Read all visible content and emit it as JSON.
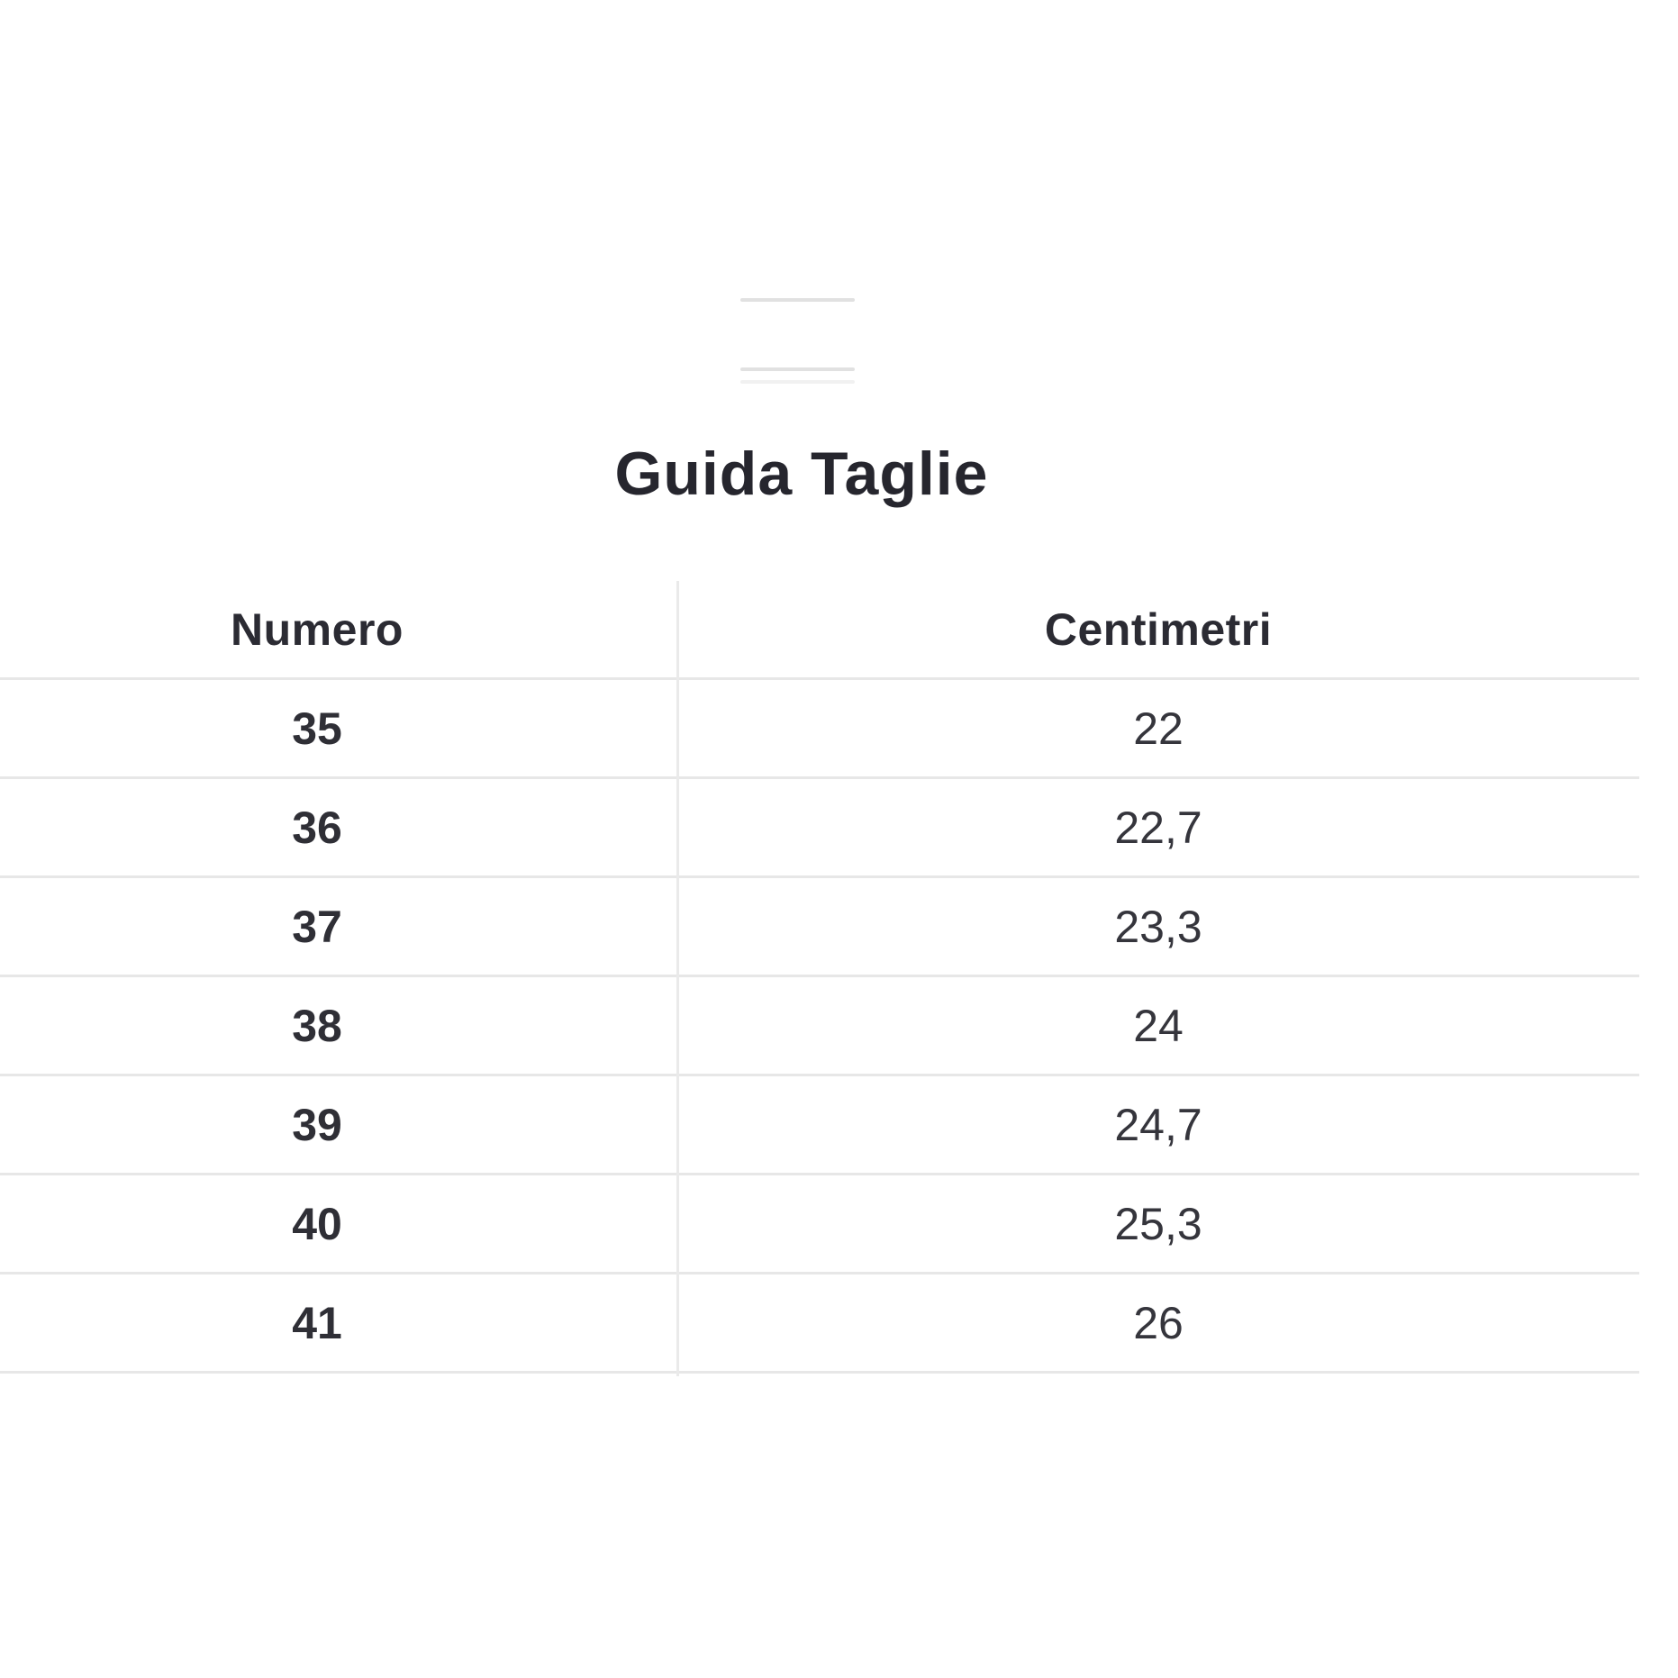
{
  "title": "Guida Taglie",
  "sheet": {
    "handle_icon": "drag-handle-lines"
  },
  "table": {
    "columns": [
      "Numero",
      "Centimetri"
    ],
    "rows": [
      {
        "numero": "35",
        "centimetri": "22"
      },
      {
        "numero": "36",
        "centimetri": "22,7"
      },
      {
        "numero": "37",
        "centimetri": "23,3"
      },
      {
        "numero": "38",
        "centimetri": "24"
      },
      {
        "numero": "39",
        "centimetri": "24,7"
      },
      {
        "numero": "40",
        "centimetri": "25,3"
      },
      {
        "numero": "41",
        "centimetri": "26"
      }
    ]
  },
  "colors": {
    "background": "#ffffff",
    "title_text": "#26262e",
    "header_text": "#2b2b33",
    "size_text": "#2f2f36",
    "value_text": "#35353c",
    "divider": "#e7e7e7",
    "handle": "#e1e1e1"
  }
}
